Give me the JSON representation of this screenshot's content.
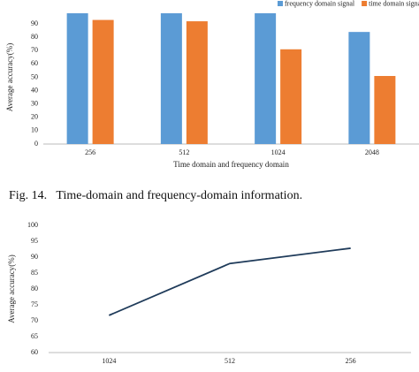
{
  "caption": "Fig. 14.   Time-domain and frequency-domain information.",
  "chart_data": [
    {
      "type": "bar",
      "categories": [
        "256",
        "512",
        "1024",
        "2048"
      ],
      "series": [
        {
          "name": "frequency domain signal",
          "color": "#5b9bd5",
          "values": [
            98,
            98,
            98,
            84
          ]
        },
        {
          "name": "time domain signal",
          "color": "#ed7d31",
          "values": [
            93,
            92,
            71,
            51
          ]
        }
      ],
      "y_label": "Average accuracy(%)",
      "x_label": "Time domain and frequency domain",
      "ylim": [
        0,
        100
      ],
      "yticks": [
        0,
        10,
        20,
        30,
        40,
        50,
        60,
        70,
        80,
        90
      ],
      "legend": "top-right",
      "grid": false
    },
    {
      "type": "line",
      "categories": [
        "1024",
        "512",
        "256"
      ],
      "series": [
        {
          "color": "#1f3b5a",
          "values": [
            71.7,
            88,
            92.8
          ]
        }
      ],
      "y_label": "Average accuracy(%)",
      "ylim": [
        60,
        100
      ],
      "yticks": [
        60,
        65,
        70,
        75,
        80,
        85,
        90,
        95,
        100
      ],
      "grid": false
    }
  ]
}
